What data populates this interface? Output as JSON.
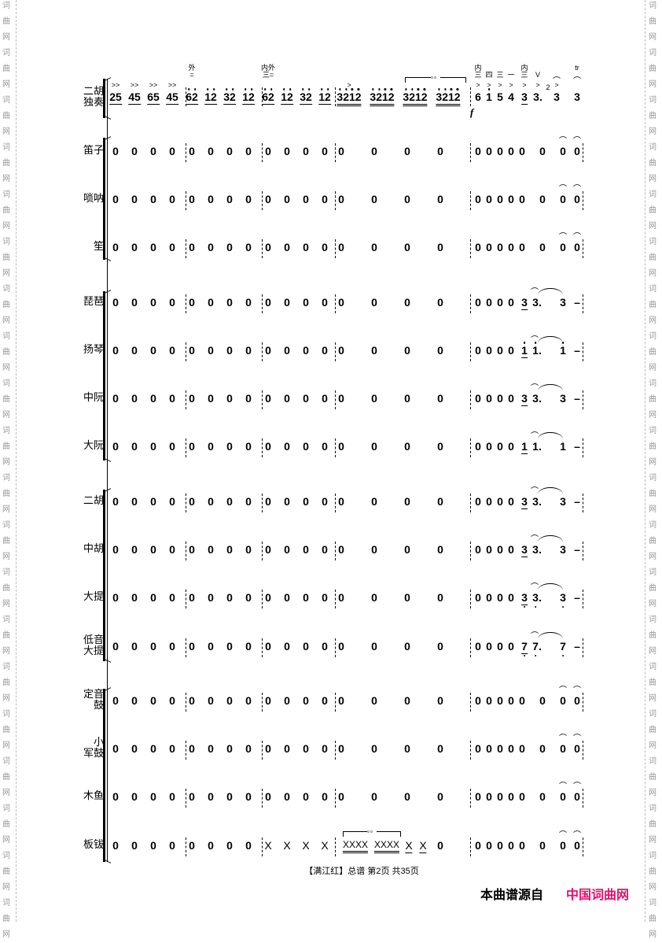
{
  "watermark": "词曲网",
  "footer": {
    "text": "【满江红】总谱  第2页  共35页"
  },
  "source": {
    "label": "本曲谱源自",
    "site": "中国词曲网",
    "site_color": "#e0126e"
  },
  "solo": {
    "name": "二胡\n独奏",
    "measures": [
      [
        {
          "t": "25",
          "u": 1,
          "acc": ">>"
        },
        {
          "t": "45",
          "u": 1,
          "acc": ">>"
        },
        {
          "t": "65",
          "u": 1,
          "acc": ">>"
        },
        {
          "t": "45",
          "u": 1,
          "acc": ">>"
        }
      ],
      [
        {
          "t": "62",
          "u": 1,
          "hi": true,
          "ann": "外\n="
        },
        {
          "t": "12",
          "u": 1,
          "hi": true
        },
        {
          "t": "32",
          "u": 1,
          "hi": true
        },
        {
          "t": "12",
          "u": 1,
          "hi": true
        }
      ],
      [
        {
          "t": "62",
          "u": 1,
          "hi": true,
          "ann": "内外\n三="
        },
        {
          "t": "12",
          "u": 1,
          "hi": true
        },
        {
          "t": "32",
          "u": 1,
          "hi": true
        },
        {
          "t": "12",
          "u": 1,
          "hi": true
        }
      ],
      [
        {
          "t": "3212",
          "u": 2,
          "hi": true,
          "acc": ">"
        },
        {
          "t": "3212",
          "u": 2,
          "hi": true
        },
        {
          "t": "3212",
          "u": 2,
          "hi": true
        },
        {
          "t": "3212",
          "u": 2,
          "hi": true
        }
      ],
      [
        {
          "t": "6",
          "ann": "内\n三",
          "acc": ">"
        },
        {
          "t": "1",
          "hi": true,
          "ann": "四",
          "acc": ">"
        },
        {
          "t": "5",
          "ann": "三",
          "acc": ">"
        },
        {
          "t": "4",
          "ann": "一",
          "acc": ">"
        },
        {
          "t": "3",
          "u": 1,
          "ann": "内\n三",
          "acc": ">"
        },
        {
          "t": "3.",
          "ann": "V",
          "acc": ">"
        }
      ],
      [
        {
          "t": "3",
          "grace": "2",
          "ferm": true,
          "acc": ">"
        },
        {
          "t": "3",
          "ferm": true,
          "ann": "tr"
        }
      ]
    ],
    "bracket_label": "。。",
    "dynamic": "f"
  },
  "instruments": [
    {
      "name": "笛子",
      "group": 1,
      "pattern": "winds"
    },
    {
      "name": "唢呐",
      "group": 1,
      "pattern": "winds"
    },
    {
      "name": "笙",
      "group": 1,
      "pattern": "winds"
    },
    {
      "name": "琵琶",
      "group": 2,
      "pattern": "pluck",
      "note": "3",
      "low": false
    },
    {
      "name": "扬琴",
      "group": 2,
      "pattern": "pluck",
      "note": "1",
      "high": true
    },
    {
      "name": "中阮",
      "group": 2,
      "pattern": "pluck",
      "note": "3"
    },
    {
      "name": "大阮",
      "group": 2,
      "pattern": "pluck",
      "note": "1"
    },
    {
      "name": "二胡",
      "group": 3,
      "pattern": "pluck",
      "note": "3",
      "trem": true
    },
    {
      "name": "中胡",
      "group": 3,
      "pattern": "pluck",
      "note": "3",
      "trem": true
    },
    {
      "name": "大提",
      "group": 3,
      "pattern": "pluck",
      "note": "3",
      "low": true,
      "trem": true
    },
    {
      "name": "低音\n大提",
      "group": 3,
      "pattern": "pluck",
      "note": "7",
      "low": true
    },
    {
      "name": "定音\n鼓",
      "group": 4,
      "pattern": "winds"
    },
    {
      "name": "小\n军鼓",
      "group": 4,
      "pattern": "winds"
    },
    {
      "name": "木鱼",
      "group": 4,
      "pattern": "winds"
    },
    {
      "name": "板钹",
      "group": 4,
      "pattern": "cymbal"
    }
  ],
  "rest": "0",
  "hit": "X",
  "hit4": "XXXX",
  "dash": "–"
}
